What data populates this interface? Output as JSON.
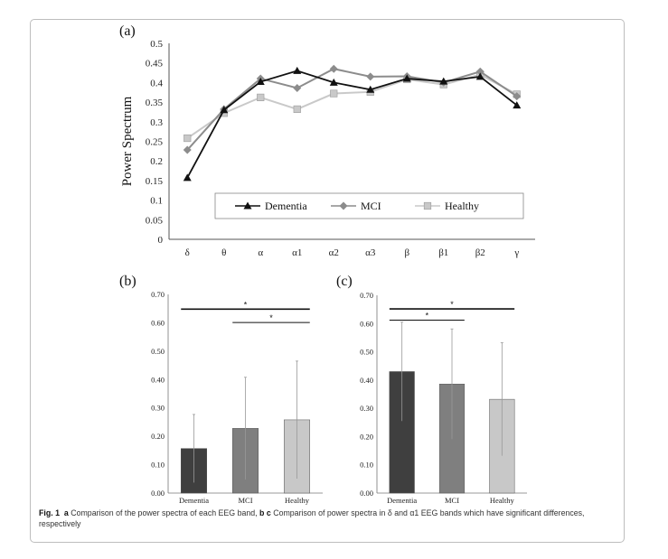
{
  "caption": {
    "fig_label": "Fig. 1",
    "part_a_letter": "a",
    "part_a_text": "Comparison of the power spectra of each EEG band,",
    "part_bc_letters": "b c",
    "part_bc_text": "Comparison of power spectra in δ and α1 EEG bands which have significant differences, respectively"
  },
  "colors": {
    "dementia": "#111111",
    "mci": "#8c8c8c",
    "healthy": "#c9c9c9",
    "bar_dementia": "#3f3f3f",
    "bar_mci": "#7f7f7f",
    "bar_healthy": "#c8c8c8"
  },
  "chart_data": [
    {
      "panel": "(a)",
      "type": "line",
      "ylabel": "Power Spectrum",
      "ylim": [
        0,
        0.5
      ],
      "yticks": [
        "0",
        "0.05",
        "0.1",
        "0.15",
        "0.2",
        "0.25",
        "0.3",
        "0.35",
        "0.4",
        "0.45",
        "0.5"
      ],
      "categories": [
        "δ",
        "θ",
        "α",
        "α1",
        "α2",
        "α3",
        "β",
        "β1",
        "β2",
        "γ"
      ],
      "legend_position": "bottom-center inside",
      "series": [
        {
          "name": "Dementia",
          "marker": "triangle",
          "values": [
            0.157,
            0.33,
            0.402,
            0.43,
            0.4,
            0.382,
            0.41,
            0.403,
            0.415,
            0.342
          ]
        },
        {
          "name": "MCI",
          "marker": "diamond",
          "values": [
            0.228,
            0.332,
            0.41,
            0.386,
            0.435,
            0.415,
            0.416,
            0.4,
            0.428,
            0.365
          ]
        },
        {
          "name": "Healthy",
          "marker": "square",
          "values": [
            0.258,
            0.322,
            0.362,
            0.332,
            0.372,
            0.376,
            0.408,
            0.395,
            0.42,
            0.37
          ]
        }
      ]
    },
    {
      "panel": "(b)",
      "type": "bar",
      "ylim": [
        0,
        0.7
      ],
      "yticks": [
        "0.00",
        "0.10",
        "0.20",
        "0.30",
        "0.40",
        "0.50",
        "0.60",
        "0.70"
      ],
      "categories": [
        "Dementia",
        "MCI",
        "Healthy"
      ],
      "values": [
        0.157,
        0.228,
        0.258
      ],
      "error": [
        0.12,
        0.18,
        0.207
      ],
      "significance": [
        {
          "from": 0,
          "to": 2,
          "y": 0.648,
          "label": "*"
        },
        {
          "from": 1,
          "to": 2,
          "y": 0.601,
          "label": "*"
        }
      ]
    },
    {
      "panel": "(c)",
      "type": "bar",
      "ylim": [
        0,
        0.7
      ],
      "yticks": [
        "0.00",
        "0.10",
        "0.20",
        "0.30",
        "0.40",
        "0.50",
        "0.60",
        "0.70"
      ],
      "categories": [
        "Dementia",
        "MCI",
        "Healthy"
      ],
      "values": [
        0.43,
        0.386,
        0.332
      ],
      "error": [
        0.175,
        0.195,
        0.2
      ],
      "significance": [
        {
          "from": 0,
          "to": 2,
          "y": 0.652,
          "label": "*"
        },
        {
          "from": 0,
          "to": 1,
          "y": 0.612,
          "label": "*"
        }
      ]
    }
  ]
}
